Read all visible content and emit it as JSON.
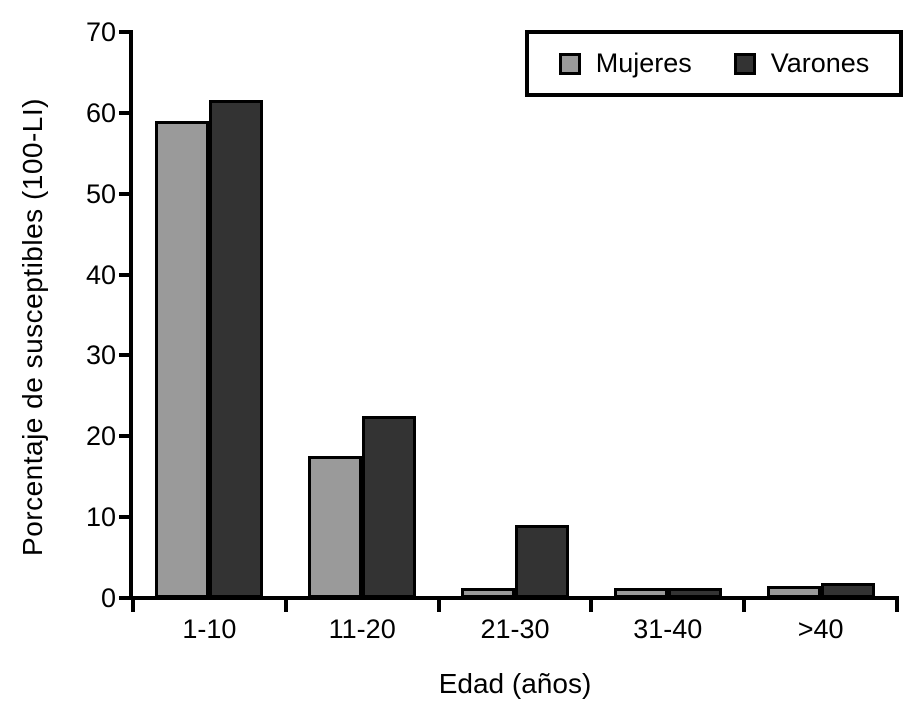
{
  "chart_data": {
    "type": "bar",
    "title": "",
    "categories": [
      "1-10",
      "11-20",
      "21-30",
      "31-40",
      ">40"
    ],
    "series": [
      {
        "name": "Mujeres",
        "color": "#9a9a9a",
        "values": [
          59.0,
          17.6,
          1.2,
          1.2,
          1.5
        ]
      },
      {
        "name": "Varones",
        "color": "#333333",
        "values": [
          61.6,
          22.5,
          9.0,
          1.2,
          1.8
        ]
      }
    ],
    "xlabel": "Edad (años)",
    "ylabel": "Porcentaje de susceptibles (100-LI)",
    "ylim": [
      0,
      70
    ],
    "yticks": [
      0,
      10,
      20,
      30,
      40,
      50,
      60,
      70
    ],
    "grid": false,
    "legend_position": "top-right",
    "bar_border_color": "#000000",
    "axis_color": "#000000"
  }
}
